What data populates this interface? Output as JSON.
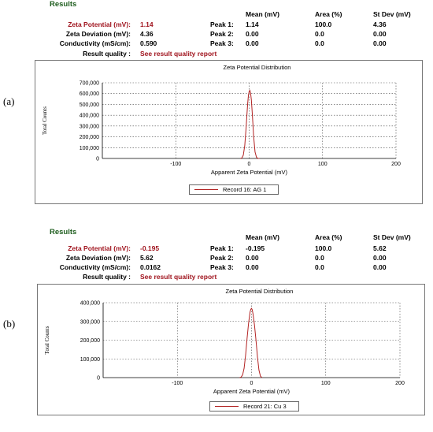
{
  "panels": [
    {
      "figure_label": "(a)",
      "results_title": "Results",
      "summary": {
        "zeta_potential_label": "Zeta Potential (mV):",
        "zeta_potential_value": "1.14",
        "zeta_deviation_label": "Zeta Deviation (mV):",
        "zeta_deviation_value": "4.36",
        "conductivity_label": "Conductivity (mS/cm):",
        "conductivity_value": "0.590",
        "result_quality_label": "Result quality :",
        "result_quality_link": "See result quality report"
      },
      "peaks_table": {
        "headers": [
          "Mean (mV)",
          "Area (%)",
          "St Dev (mV)"
        ],
        "rows": [
          {
            "label": "Peak 1:",
            "mean": "1.14",
            "area": "100.0",
            "stdev": "4.36"
          },
          {
            "label": "Peak 2:",
            "mean": "0.00",
            "area": "0.0",
            "stdev": "0.00"
          },
          {
            "label": "Peak 3:",
            "mean": "0.00",
            "area": "0.0",
            "stdev": "0.00"
          }
        ]
      },
      "legend": {
        "label": "Record 16: AG 1"
      },
      "colors": {
        "series": "#b22222",
        "title": "#1f5e1f",
        "highlight": "#a0141e"
      }
    },
    {
      "figure_label": "(b)",
      "results_title": "Results",
      "summary": {
        "zeta_potential_label": "Zeta Potential (mV):",
        "zeta_potential_value": "-0.195",
        "zeta_deviation_label": "Zeta Deviation (mV):",
        "zeta_deviation_value": "5.62",
        "conductivity_label": "Conductivity (mS/cm):",
        "conductivity_value": "0.0162",
        "result_quality_label": "Result quality :",
        "result_quality_link": "See result quality report"
      },
      "peaks_table": {
        "headers": [
          "Mean (mV)",
          "Area (%)",
          "St Dev (mV)"
        ],
        "rows": [
          {
            "label": "Peak 1:",
            "mean": "-0.195",
            "area": "100.0",
            "stdev": "5.62"
          },
          {
            "label": "Peak 2:",
            "mean": "0.00",
            "area": "0.0",
            "stdev": "0.00"
          },
          {
            "label": "Peak 3:",
            "mean": "0.00",
            "area": "0.0",
            "stdev": "0.00"
          }
        ]
      },
      "legend": {
        "label": "Record 21: Cu 3"
      },
      "colors": {
        "series": "#b22222",
        "title": "#1f5e1f",
        "highlight": "#a0141e"
      }
    }
  ],
  "chart_data": [
    {
      "type": "line",
      "title": "Zeta Potential Distribution",
      "xlabel": "Apparent Zeta Potential (mV)",
      "ylabel": "Total Counts",
      "xlim": [
        -200,
        200
      ],
      "ylim": [
        0,
        700000
      ],
      "xticks": [
        -100,
        0,
        100,
        200
      ],
      "xtick_labels": [
        "-100",
        "0",
        "100",
        "200"
      ],
      "yticks": [
        0,
        100000,
        200000,
        300000,
        400000,
        500000,
        600000,
        700000
      ],
      "ytick_labels": [
        "0",
        "100,000",
        "200,000",
        "300,000",
        "400,000",
        "500,000",
        "600,000",
        "700,000"
      ],
      "grid": true,
      "legend_position": "bottom-center",
      "series": [
        {
          "name": "Record 16: AG 1",
          "x": [
            -12,
            -10,
            -8,
            -6,
            -4,
            -3,
            -2,
            -1,
            0,
            1,
            2,
            3,
            4,
            5,
            6,
            8,
            10,
            12,
            14
          ],
          "y": [
            0,
            4000,
            30000,
            120000,
            300000,
            410000,
            510000,
            585000,
            620000,
            630000,
            600000,
            540000,
            440000,
            330000,
            210000,
            60000,
            10000,
            1000,
            0
          ]
        }
      ]
    },
    {
      "type": "line",
      "title": "Zeta Potential Distribution",
      "xlabel": "Apparent Zeta Potential (mV)",
      "ylabel": "Total Counts",
      "xlim": [
        -200,
        200
      ],
      "ylim": [
        0,
        400000
      ],
      "xticks": [
        -100,
        0,
        100,
        200
      ],
      "xtick_labels": [
        "-100",
        "0",
        "100",
        "200"
      ],
      "yticks": [
        0,
        100000,
        200000,
        300000,
        400000
      ],
      "ytick_labels": [
        "0",
        "100,000",
        "200,000",
        "300,000",
        "400,000"
      ],
      "grid": true,
      "legend_position": "bottom-center",
      "series": [
        {
          "name": "Record 21: Cu 3",
          "x": [
            -16,
            -14,
            -12,
            -10,
            -8,
            -6,
            -4,
            -2,
            -1,
            0,
            1,
            2,
            4,
            6,
            8,
            10,
            12,
            14
          ],
          "y": [
            0,
            3000,
            15000,
            50000,
            120000,
            210000,
            290000,
            350000,
            365000,
            370000,
            362000,
            340000,
            280000,
            200000,
            110000,
            40000,
            8000,
            0
          ]
        }
      ]
    }
  ]
}
